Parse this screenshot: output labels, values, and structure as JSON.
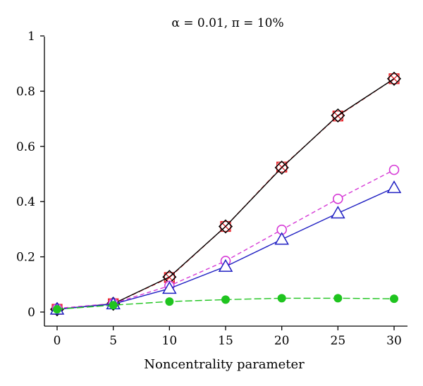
{
  "chart_data": {
    "type": "line",
    "title": "α = 0.01, π = 10%",
    "xlabel": "Noncentrality parameter",
    "ylabel": "",
    "x": [
      0,
      5,
      10,
      15,
      20,
      25,
      30
    ],
    "xlim": [
      0,
      30
    ],
    "ylim": [
      0,
      1
    ],
    "xticks": [
      "0",
      "5",
      "10",
      "15",
      "20",
      "25",
      "30"
    ],
    "yticks": [
      "0",
      "0.2",
      "0.4",
      "0.6",
      "0.8",
      "1"
    ],
    "grid": false,
    "legend": "none",
    "series": [
      {
        "color": "#e8252b",
        "marker": "square-x",
        "line": "dashed",
        "values": [
          0.01,
          0.03,
          0.125,
          0.31,
          0.525,
          0.71,
          0.845
        ]
      },
      {
        "color": "#000000",
        "marker": "diamond",
        "line": "solid",
        "values": [
          0.01,
          0.03,
          0.127,
          0.31,
          0.523,
          0.712,
          0.845
        ]
      },
      {
        "color": "#d63ad6",
        "marker": "circle-open",
        "line": "dashed",
        "values": [
          0.013,
          0.031,
          0.095,
          0.185,
          0.298,
          0.41,
          0.515
        ]
      },
      {
        "color": "#1f1fc2",
        "marker": "triangle-open",
        "line": "solid",
        "values": [
          0.01,
          0.029,
          0.085,
          0.165,
          0.263,
          0.358,
          0.45
        ]
      },
      {
        "color": "#1fc41f",
        "marker": "circle-filled",
        "line": "longdash",
        "values": [
          0.01,
          0.025,
          0.038,
          0.045,
          0.05,
          0.05,
          0.048
        ]
      }
    ]
  }
}
